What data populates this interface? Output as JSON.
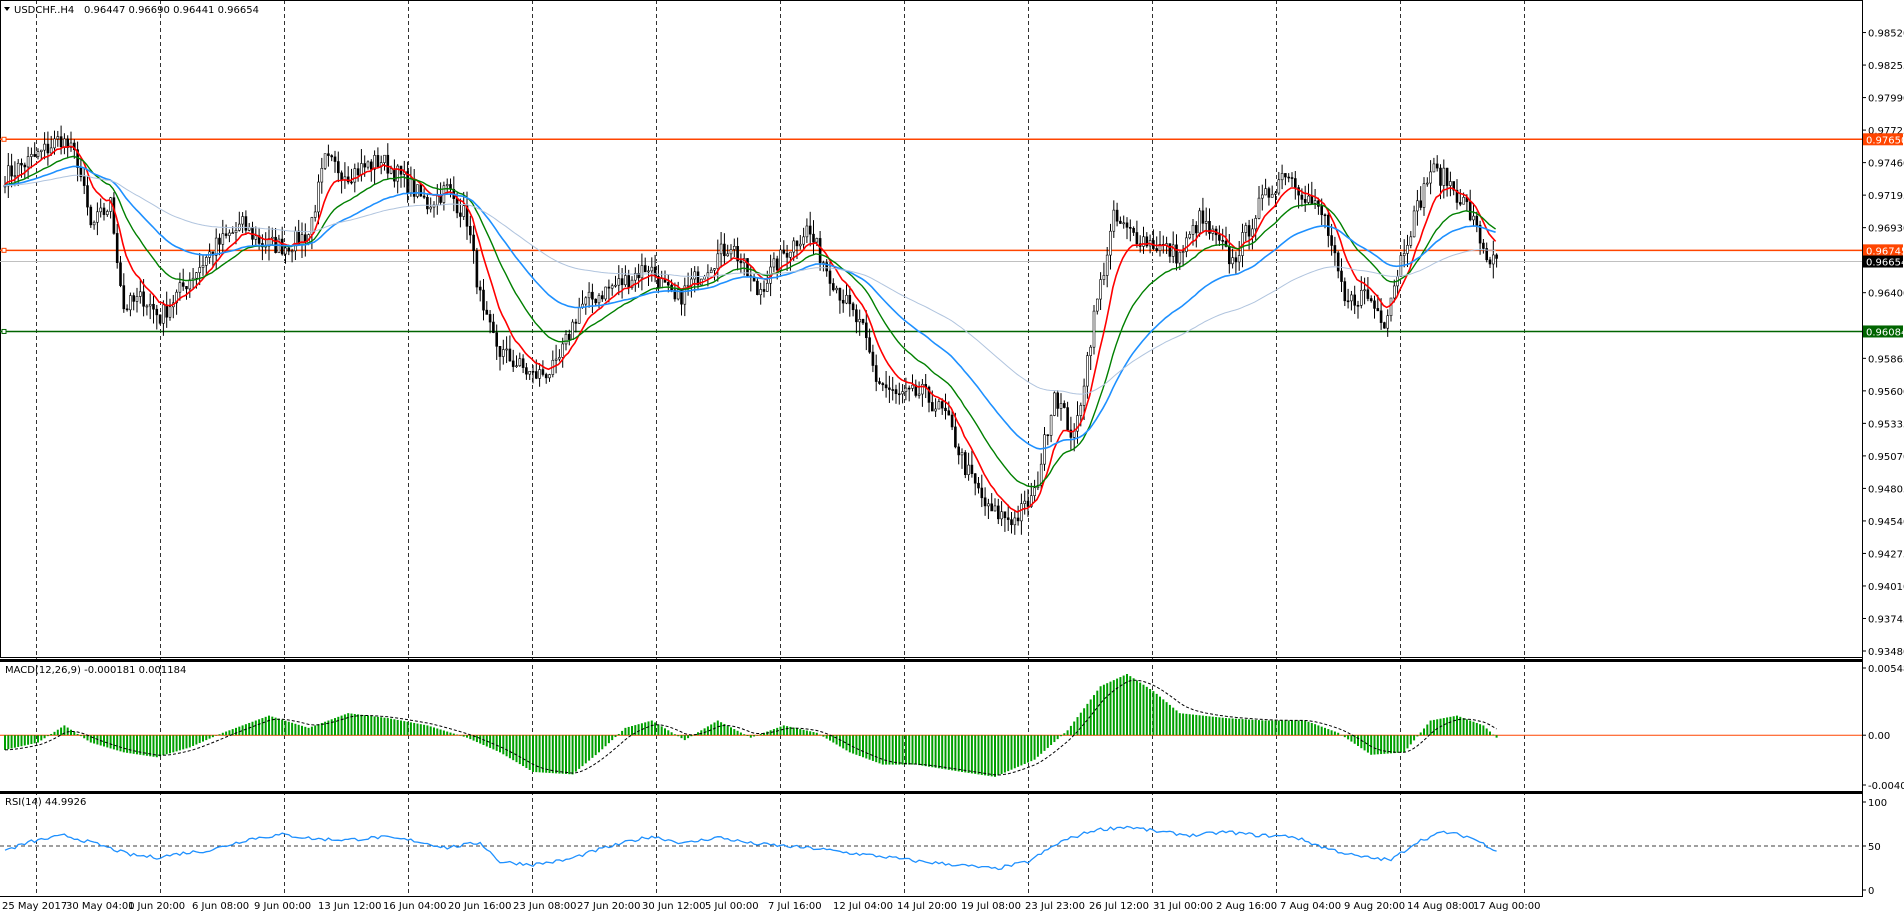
{
  "header": {
    "symbol_label": "USDCHF..H4",
    "ohlc_label": "0.96447 0.96690 0.96441 0.96654",
    "macd_label": "MACD(12,26,9) -0.000181 0.001184",
    "rsi_label": "RSI(14) 44.9926"
  },
  "colors": {
    "background": "#ffffff",
    "grid": "#000000",
    "candle": "#000000",
    "ema_fast": "#ff0000",
    "ema_mid": "#008000",
    "ema_slow": "#1e90ff",
    "ma_long": "#b0c4de",
    "resistance": "#ff4500",
    "support": "#006400",
    "macd_hist": "#00a000",
    "rsi_line": "#1e90ff"
  },
  "chart_data": [
    {
      "type": "candlestick",
      "name": "price",
      "y_ticks": [
        "0.98520",
        "0.98255",
        "0.97990",
        "0.97725",
        "0.97460",
        "0.97195",
        "0.96930",
        "0.96400",
        "0.95865",
        "0.95600",
        "0.95335",
        "0.95070",
        "0.94805",
        "0.94540",
        "0.94275",
        "0.94010",
        "0.93745",
        "0.93480"
      ],
      "ylim": [
        0.9348,
        0.9872
      ],
      "x_labels": [
        "25 May 2017",
        "30 May 04:00",
        "1 Jun 20:00",
        "6 Jun 08:00",
        "9 Jun 00:00",
        "13 Jun 12:00",
        "16 Jun 04:00",
        "20 Jun 16:00",
        "23 Jun 08:00",
        "27 Jun 20:00",
        "30 Jun 12:00",
        "5 Jul 00:00",
        "7 Jul 16:00",
        "12 Jul 04:00",
        "14 Jul 20:00",
        "19 Jul 08:00",
        "23 Jul 23:00",
        "26 Jul 12:00",
        "31 Jul 00:00",
        "2 Aug 16:00",
        "7 Aug 04:00",
        "9 Aug 20:00",
        "14 Aug 08:00",
        "17 Aug 00:00"
      ],
      "levels": [
        {
          "label": "0.97650",
          "value": 0.9765,
          "kind": "resistance"
        },
        {
          "label": "0.96745",
          "value": 0.96745,
          "kind": "resistance"
        },
        {
          "label": "0.96654",
          "value": 0.96654,
          "kind": "current"
        },
        {
          "label": "0.96084",
          "value": 0.96084,
          "kind": "support"
        }
      ],
      "close_path": [
        [
          0,
          0.9735
        ],
        [
          10,
          0.9752
        ],
        [
          17,
          0.9766
        ],
        [
          22,
          0.9748
        ],
        [
          26,
          0.9693
        ],
        [
          32,
          0.9712
        ],
        [
          36,
          0.9628
        ],
        [
          42,
          0.9636
        ],
        [
          47,
          0.962
        ],
        [
          56,
          0.9652
        ],
        [
          64,
          0.9678
        ],
        [
          72,
          0.9695
        ],
        [
          78,
          0.968
        ],
        [
          85,
          0.9678
        ],
        [
          92,
          0.9688
        ],
        [
          97,
          0.9747
        ],
        [
          104,
          0.9737
        ],
        [
          114,
          0.9748
        ],
        [
          121,
          0.9732
        ],
        [
          128,
          0.9712
        ],
        [
          134,
          0.9725
        ],
        [
          140,
          0.97
        ],
        [
          145,
          0.962
        ],
        [
          150,
          0.9592
        ],
        [
          160,
          0.9572
        ],
        [
          167,
          0.9578
        ],
        [
          174,
          0.9628
        ],
        [
          182,
          0.9642
        ],
        [
          188,
          0.965
        ],
        [
          195,
          0.9662
        ],
        [
          203,
          0.9632
        ],
        [
          212,
          0.966
        ],
        [
          220,
          0.968
        ],
        [
          228,
          0.964
        ],
        [
          236,
          0.9672
        ],
        [
          243,
          0.9692
        ],
        [
          252,
          0.9645
        ],
        [
          260,
          0.9608
        ],
        [
          264,
          0.957
        ],
        [
          270,
          0.9555
        ],
        [
          278,
          0.9558
        ],
        [
          285,
          0.954
        ],
        [
          291,
          0.9498
        ],
        [
          298,
          0.9462
        ],
        [
          306,
          0.9455
        ],
        [
          312,
          0.9475
        ],
        [
          318,
          0.956
        ],
        [
          324,
          0.952
        ],
        [
          330,
          0.962
        ],
        [
          336,
          0.97
        ],
        [
          340,
          0.969
        ],
        [
          348,
          0.968
        ],
        [
          356,
          0.967
        ],
        [
          362,
          0.97
        ],
        [
          372,
          0.9665
        ],
        [
          380,
          0.971
        ],
        [
          388,
          0.974
        ],
        [
          394,
          0.972
        ],
        [
          400,
          0.97
        ],
        [
          406,
          0.963
        ],
        [
          412,
          0.964
        ],
        [
          418,
          0.9618
        ],
        [
          424,
          0.9678
        ],
        [
          432,
          0.974
        ],
        [
          437,
          0.9732
        ],
        [
          443,
          0.971
        ],
        [
          449,
          0.967
        ],
        [
          452,
          0.9662
        ]
      ]
    },
    {
      "type": "bar",
      "name": "MACD(12,26,9)",
      "y_ticks": [
        "0.005489",
        "0.00",
        "-0.004067"
      ],
      "ylim": [
        -0.004067,
        0.005489
      ],
      "hist_path": [
        [
          0,
          -0.0012
        ],
        [
          10,
          -0.0006
        ],
        [
          18,
          0.0008
        ],
        [
          26,
          -0.0006
        ],
        [
          36,
          -0.0014
        ],
        [
          46,
          -0.0018
        ],
        [
          56,
          -0.001
        ],
        [
          66,
          0.0002
        ],
        [
          80,
          0.0016
        ],
        [
          92,
          0.0006
        ],
        [
          104,
          0.0018
        ],
        [
          116,
          0.0014
        ],
        [
          128,
          0.0008
        ],
        [
          140,
          -0.0002
        ],
        [
          150,
          -0.0014
        ],
        [
          160,
          -0.003
        ],
        [
          172,
          -0.0032
        ],
        [
          180,
          -0.0014
        ],
        [
          188,
          0.0006
        ],
        [
          196,
          0.0012
        ],
        [
          206,
          -0.0004
        ],
        [
          216,
          0.0012
        ],
        [
          226,
          -0.0002
        ],
        [
          236,
          0.0008
        ],
        [
          246,
          0.0002
        ],
        [
          256,
          -0.0014
        ],
        [
          266,
          -0.0024
        ],
        [
          276,
          -0.0024
        ],
        [
          290,
          -0.003
        ],
        [
          300,
          -0.0034
        ],
        [
          312,
          -0.002
        ],
        [
          322,
          0.0004
        ],
        [
          332,
          0.004
        ],
        [
          340,
          0.005
        ],
        [
          348,
          0.0036
        ],
        [
          356,
          0.0018
        ],
        [
          370,
          0.0014
        ],
        [
          382,
          0.0012
        ],
        [
          394,
          0.0012
        ],
        [
          404,
          0.0002
        ],
        [
          414,
          -0.0016
        ],
        [
          424,
          -0.0014
        ],
        [
          432,
          0.0012
        ],
        [
          440,
          0.0016
        ],
        [
          448,
          0.0008
        ],
        [
          452,
          -0.0002
        ]
      ]
    },
    {
      "type": "line",
      "name": "RSI(14)",
      "y_ticks": [
        "100",
        "50",
        "0"
      ],
      "ylim": [
        0,
        100
      ],
      "levels": [
        50
      ],
      "rsi_path": [
        [
          0,
          45
        ],
        [
          8,
          55
        ],
        [
          18,
          62
        ],
        [
          28,
          52
        ],
        [
          38,
          40
        ],
        [
          46,
          37
        ],
        [
          54,
          42
        ],
        [
          62,
          45
        ],
        [
          74,
          58
        ],
        [
          84,
          63
        ],
        [
          94,
          58
        ],
        [
          104,
          57
        ],
        [
          114,
          60
        ],
        [
          124,
          56
        ],
        [
          134,
          48
        ],
        [
          144,
          54
        ],
        [
          150,
          32
        ],
        [
          160,
          29
        ],
        [
          170,
          34
        ],
        [
          180,
          46
        ],
        [
          190,
          56
        ],
        [
          196,
          61
        ],
        [
          206,
          53
        ],
        [
          216,
          60
        ],
        [
          226,
          53
        ],
        [
          236,
          50
        ],
        [
          246,
          47
        ],
        [
          256,
          42
        ],
        [
          266,
          38
        ],
        [
          276,
          33
        ],
        [
          290,
          28
        ],
        [
          300,
          24
        ],
        [
          310,
          32
        ],
        [
          320,
          55
        ],
        [
          330,
          68
        ],
        [
          340,
          72
        ],
        [
          350,
          66
        ],
        [
          360,
          62
        ],
        [
          370,
          66
        ],
        [
          380,
          62
        ],
        [
          390,
          61
        ],
        [
          400,
          48
        ],
        [
          410,
          38
        ],
        [
          420,
          34
        ],
        [
          428,
          55
        ],
        [
          436,
          66
        ],
        [
          444,
          60
        ],
        [
          452,
          45
        ]
      ]
    }
  ]
}
